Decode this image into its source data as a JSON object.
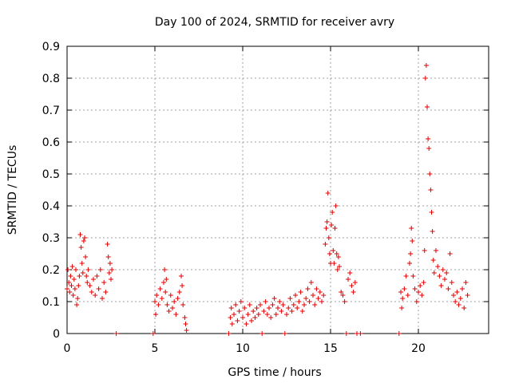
{
  "chart_data": {
    "type": "scatter",
    "title": "Day 100 of 2024, SRMTID for receiver avry",
    "xlabel": "GPS time / hours",
    "ylabel": "SRMTID / TECUs",
    "xlim": [
      0,
      24
    ],
    "ylim": [
      0,
      0.9
    ],
    "xticks": [
      0,
      5,
      10,
      15,
      20
    ],
    "xtick_labels": [
      "0",
      "5",
      "10",
      "15",
      "20"
    ],
    "yticks": [
      0,
      0.1,
      0.2,
      0.3,
      0.4,
      0.5,
      0.6,
      0.7,
      0.8,
      0.9
    ],
    "ytick_labels": [
      "0",
      "0.1",
      "0.2",
      "0.3",
      "0.4",
      "0.5",
      "0.6",
      "0.7",
      "0.8",
      "0.9"
    ],
    "grid": true,
    "marker": "+",
    "color": "#e00000",
    "series": [
      {
        "name": "SRMTID",
        "points": [
          [
            0.0,
            0.14
          ],
          [
            0.05,
            0.2
          ],
          [
            0.1,
            0.16
          ],
          [
            0.15,
            0.13
          ],
          [
            0.2,
            0.18
          ],
          [
            0.25,
            0.15
          ],
          [
            0.3,
            0.21
          ],
          [
            0.35,
            0.12
          ],
          [
            0.4,
            0.17
          ],
          [
            0.45,
            0.14
          ],
          [
            0.5,
            0.2
          ],
          [
            0.55,
            0.09
          ],
          [
            0.6,
            0.11
          ],
          [
            0.65,
            0.15
          ],
          [
            0.7,
            0.18
          ],
          [
            0.75,
            0.31
          ],
          [
            0.8,
            0.27
          ],
          [
            0.85,
            0.22
          ],
          [
            0.9,
            0.19
          ],
          [
            0.95,
            0.29
          ],
          [
            1.0,
            0.3
          ],
          [
            1.05,
            0.24
          ],
          [
            1.1,
            0.18
          ],
          [
            1.15,
            0.16
          ],
          [
            1.2,
            0.2
          ],
          [
            1.3,
            0.15
          ],
          [
            1.4,
            0.13
          ],
          [
            1.5,
            0.17
          ],
          [
            1.6,
            0.12
          ],
          [
            1.7,
            0.18
          ],
          [
            1.8,
            0.14
          ],
          [
            1.9,
            0.2
          ],
          [
            2.0,
            0.11
          ],
          [
            2.1,
            0.16
          ],
          [
            2.2,
            0.13
          ],
          [
            2.3,
            0.28
          ],
          [
            2.35,
            0.24
          ],
          [
            2.4,
            0.19
          ],
          [
            2.45,
            0.22
          ],
          [
            2.5,
            0.17
          ],
          [
            2.55,
            0.2
          ],
          [
            2.8,
            0.0
          ],
          [
            4.9,
            0.0
          ],
          [
            5.0,
            0.1
          ],
          [
            5.05,
            0.06
          ],
          [
            5.1,
            0.12
          ],
          [
            5.2,
            0.09
          ],
          [
            5.3,
            0.14
          ],
          [
            5.4,
            0.11
          ],
          [
            5.5,
            0.16
          ],
          [
            5.55,
            0.2
          ],
          [
            5.6,
            0.13
          ],
          [
            5.65,
            0.17
          ],
          [
            5.7,
            0.09
          ],
          [
            5.8,
            0.07
          ],
          [
            5.9,
            0.12
          ],
          [
            6.0,
            0.08
          ],
          [
            6.1,
            0.1
          ],
          [
            6.2,
            0.06
          ],
          [
            6.3,
            0.11
          ],
          [
            6.4,
            0.13
          ],
          [
            6.5,
            0.18
          ],
          [
            6.55,
            0.15
          ],
          [
            6.6,
            0.09
          ],
          [
            6.7,
            0.05
          ],
          [
            6.75,
            0.03
          ],
          [
            6.8,
            0.01
          ],
          [
            9.2,
            0.0
          ],
          [
            9.3,
            0.05
          ],
          [
            9.35,
            0.08
          ],
          [
            9.4,
            0.03
          ],
          [
            9.5,
            0.06
          ],
          [
            9.6,
            0.09
          ],
          [
            9.7,
            0.04
          ],
          [
            9.8,
            0.07
          ],
          [
            9.9,
            0.1
          ],
          [
            10.0,
            0.05
          ],
          [
            10.1,
            0.08
          ],
          [
            10.2,
            0.03
          ],
          [
            10.3,
            0.06
          ],
          [
            10.4,
            0.09
          ],
          [
            10.5,
            0.04
          ],
          [
            10.6,
            0.07
          ],
          [
            10.7,
            0.05
          ],
          [
            10.8,
            0.08
          ],
          [
            10.9,
            0.06
          ],
          [
            11.0,
            0.09
          ],
          [
            11.1,
            0.0
          ],
          [
            11.2,
            0.07
          ],
          [
            11.3,
            0.1
          ],
          [
            11.4,
            0.06
          ],
          [
            11.5,
            0.08
          ],
          [
            11.6,
            0.05
          ],
          [
            11.7,
            0.09
          ],
          [
            11.8,
            0.11
          ],
          [
            11.9,
            0.06
          ],
          [
            12.0,
            0.08
          ],
          [
            12.1,
            0.1
          ],
          [
            12.2,
            0.07
          ],
          [
            12.3,
            0.09
          ],
          [
            12.4,
            0.0
          ],
          [
            12.5,
            0.06
          ],
          [
            12.6,
            0.08
          ],
          [
            12.7,
            0.11
          ],
          [
            12.8,
            0.07
          ],
          [
            12.9,
            0.09
          ],
          [
            13.0,
            0.12
          ],
          [
            13.1,
            0.08
          ],
          [
            13.2,
            0.1
          ],
          [
            13.3,
            0.13
          ],
          [
            13.4,
            0.07
          ],
          [
            13.5,
            0.09
          ],
          [
            13.6,
            0.11
          ],
          [
            13.7,
            0.14
          ],
          [
            13.8,
            0.1
          ],
          [
            13.9,
            0.16
          ],
          [
            14.0,
            0.12
          ],
          [
            14.1,
            0.09
          ],
          [
            14.2,
            0.14
          ],
          [
            14.3,
            0.11
          ],
          [
            14.4,
            0.13
          ],
          [
            14.5,
            0.1
          ],
          [
            14.6,
            0.12
          ],
          [
            14.7,
            0.28
          ],
          [
            14.75,
            0.33
          ],
          [
            14.8,
            0.35
          ],
          [
            14.85,
            0.44
          ],
          [
            14.9,
            0.3
          ],
          [
            14.95,
            0.25
          ],
          [
            15.0,
            0.22
          ],
          [
            15.05,
            0.34
          ],
          [
            15.1,
            0.38
          ],
          [
            15.15,
            0.26
          ],
          [
            15.2,
            0.22
          ],
          [
            15.25,
            0.33
          ],
          [
            15.3,
            0.4
          ],
          [
            15.35,
            0.25
          ],
          [
            15.4,
            0.2
          ],
          [
            15.45,
            0.24
          ],
          [
            15.5,
            0.21
          ],
          [
            15.6,
            0.13
          ],
          [
            15.7,
            0.12
          ],
          [
            15.8,
            0.1
          ],
          [
            15.9,
            0.0
          ],
          [
            16.0,
            0.17
          ],
          [
            16.1,
            0.19
          ],
          [
            16.2,
            0.15
          ],
          [
            16.3,
            0.13
          ],
          [
            16.4,
            0.16
          ],
          [
            16.5,
            0.0
          ],
          [
            16.7,
            0.0
          ],
          [
            18.9,
            0.0
          ],
          [
            19.0,
            0.13
          ],
          [
            19.05,
            0.08
          ],
          [
            19.1,
            0.11
          ],
          [
            19.2,
            0.14
          ],
          [
            19.3,
            0.18
          ],
          [
            19.4,
            0.12
          ],
          [
            19.5,
            0.22
          ],
          [
            19.55,
            0.25
          ],
          [
            19.6,
            0.33
          ],
          [
            19.65,
            0.29
          ],
          [
            19.7,
            0.18
          ],
          [
            19.8,
            0.14
          ],
          [
            19.9,
            0.1
          ],
          [
            20.0,
            0.13
          ],
          [
            20.1,
            0.15
          ],
          [
            20.2,
            0.12
          ],
          [
            20.3,
            0.16
          ],
          [
            20.35,
            0.26
          ],
          [
            20.4,
            0.8
          ],
          [
            20.45,
            0.84
          ],
          [
            20.5,
            0.71
          ],
          [
            20.55,
            0.61
          ],
          [
            20.6,
            0.58
          ],
          [
            20.65,
            0.5
          ],
          [
            20.7,
            0.45
          ],
          [
            20.75,
            0.38
          ],
          [
            20.8,
            0.32
          ],
          [
            20.85,
            0.23
          ],
          [
            20.9,
            0.19
          ],
          [
            21.0,
            0.26
          ],
          [
            21.1,
            0.21
          ],
          [
            21.2,
            0.18
          ],
          [
            21.3,
            0.15
          ],
          [
            21.4,
            0.2
          ],
          [
            21.5,
            0.17
          ],
          [
            21.6,
            0.19
          ],
          [
            21.7,
            0.14
          ],
          [
            21.8,
            0.25
          ],
          [
            21.9,
            0.16
          ],
          [
            22.0,
            0.12
          ],
          [
            22.1,
            0.1
          ],
          [
            22.2,
            0.13
          ],
          [
            22.3,
            0.09
          ],
          [
            22.4,
            0.11
          ],
          [
            22.5,
            0.14
          ],
          [
            22.6,
            0.08
          ],
          [
            22.7,
            0.16
          ],
          [
            22.8,
            0.12
          ]
        ]
      }
    ]
  }
}
